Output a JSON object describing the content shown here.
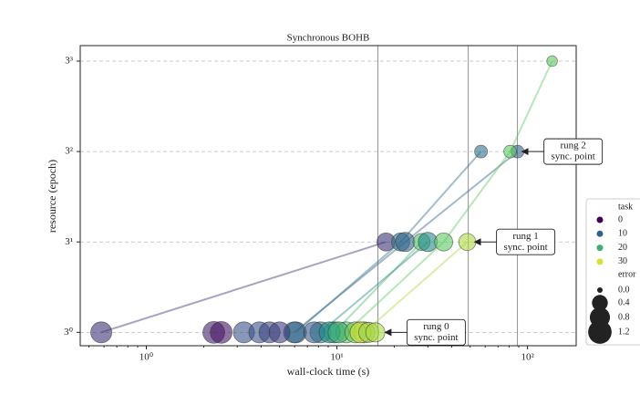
{
  "chart_data": {
    "type": "scatter",
    "title": "Synchronous BOHB",
    "x_label": "wall-clock time (s)",
    "y_label": "resource (epoch)",
    "x_log": true,
    "y_log": true,
    "xlim": [
      0.45,
      180
    ],
    "ylim": [
      0.85,
      32.6
    ],
    "xticks": [
      {
        "value": 1,
        "label": "10⁰"
      },
      {
        "value": 10,
        "label": "10¹"
      },
      {
        "value": 100,
        "label": "10²"
      }
    ],
    "yticks": [
      {
        "value": 1,
        "label": "3⁰"
      },
      {
        "value": 3,
        "label": "3¹"
      },
      {
        "value": 9,
        "label": "3²"
      },
      {
        "value": 27,
        "label": "3³"
      }
    ],
    "grid": true,
    "colormap": [
      "#440154",
      "#3b528b",
      "#21918c",
      "#5ec962",
      "#fde725"
    ],
    "color_norm": [
      0,
      32
    ],
    "vlines": [
      16.4,
      48.9,
      88.6
    ],
    "trials": [
      {
        "task": 5,
        "x": [
          0.58,
          18.1
        ],
        "y": [
          1,
          3
        ],
        "error": [
          0.9,
          0.6
        ]
      },
      {
        "task": 12,
        "x": [
          6.09,
          21.6,
          57.0
        ],
        "y": [
          1,
          3,
          9
        ],
        "error": [
          0.9,
          0.6,
          0.2
        ]
      },
      {
        "task": 10,
        "x": [
          5.96,
          22.8,
          88.6
        ],
        "y": [
          1,
          3,
          9
        ],
        "error": [
          0.9,
          0.7,
          0.2
        ]
      },
      {
        "task": 22,
        "x": [
          9.68,
          27.8
        ],
        "y": [
          1,
          3
        ],
        "error": [
          0.9,
          0.5
        ]
      },
      {
        "task": 15,
        "x": [
          8.2,
          30.0
        ],
        "y": [
          1,
          3
        ],
        "error": [
          0.9,
          0.7
        ]
      },
      {
        "task": 24,
        "x": [
          11.2,
          36.3,
          81.1,
          134.6
        ],
        "y": [
          1,
          3,
          9,
          27
        ],
        "error": [
          0.9,
          0.6,
          0.2,
          0.1
        ]
      },
      {
        "task": 28,
        "x": [
          13.9,
          48.3
        ],
        "y": [
          1,
          3
        ],
        "error": [
          0.9,
          0.5
        ]
      },
      {
        "task": 3,
        "x": [
          2.26
        ],
        "y": [
          1
        ],
        "error": [
          1.0
        ]
      },
      {
        "task": 2,
        "x": [
          2.47
        ],
        "y": [
          1
        ],
        "error": [
          1.0
        ]
      },
      {
        "task": 8,
        "x": [
          3.25
        ],
        "y": [
          1
        ],
        "error": [
          0.9
        ]
      },
      {
        "task": 8,
        "x": [
          3.92
        ],
        "y": [
          1
        ],
        "error": [
          0.9
        ]
      },
      {
        "task": 7,
        "x": [
          4.43
        ],
        "y": [
          1
        ],
        "error": [
          0.9
        ]
      },
      {
        "task": 6,
        "x": [
          5.0
        ],
        "y": [
          1
        ],
        "error": [
          0.9
        ]
      },
      {
        "task": 9,
        "x": [
          7.59
        ],
        "y": [
          1
        ],
        "error": [
          0.9
        ]
      },
      {
        "task": 16,
        "x": [
          9.16
        ],
        "y": [
          1
        ],
        "error": [
          0.9
        ]
      },
      {
        "task": 20,
        "x": [
          10.2
        ],
        "y": [
          1
        ],
        "error": [
          0.9
        ]
      },
      {
        "task": 25,
        "x": [
          12.5
        ],
        "y": [
          1
        ],
        "error": [
          0.9
        ]
      },
      {
        "task": 30,
        "x": [
          13.3
        ],
        "y": [
          1
        ],
        "error": [
          0.9
        ]
      },
      {
        "task": 27,
        "x": [
          14.7
        ],
        "y": [
          1
        ],
        "error": [
          0.8
        ]
      },
      {
        "task": 28,
        "x": [
          15.9
        ],
        "y": [
          1
        ],
        "error": [
          0.7
        ]
      }
    ],
    "annotations": [
      {
        "lines": [
          "rung 0",
          "sync. point"
        ],
        "x": 17.7,
        "y": 1
      },
      {
        "lines": [
          "rung 1",
          "sync. point"
        ],
        "x": 52.2,
        "y": 3
      },
      {
        "lines": [
          "rung 2",
          "sync. point"
        ],
        "x": 92.6,
        "y": 9
      }
    ],
    "legend": {
      "task_title": "task",
      "task_entries": [
        0,
        10,
        20,
        30
      ],
      "error_title": "error",
      "error_entries": [
        {
          "value": 0,
          "label": "0.0"
        },
        {
          "value": 0.4,
          "label": "0.4"
        },
        {
          "value": 0.8,
          "label": "0.8"
        },
        {
          "value": 1.2,
          "label": "1.2"
        }
      ]
    }
  }
}
